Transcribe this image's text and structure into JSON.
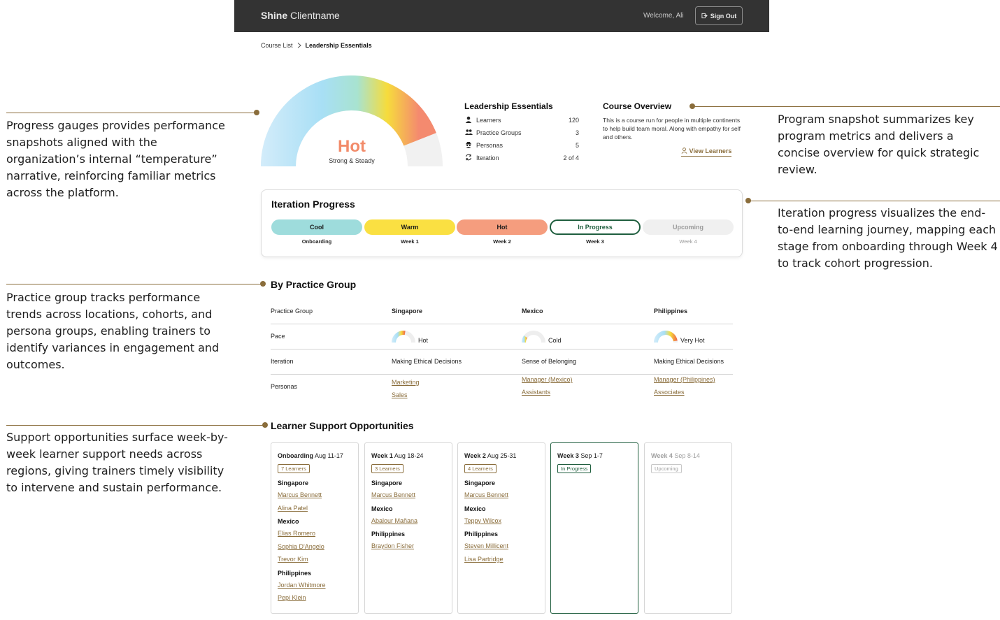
{
  "annotations": {
    "gauges": "Progress gauges provides performance snapshots aligned with the organization’s internal “temperature” narrative, reinforcing familiar metrics across the platform.",
    "snapshot": "Program snapshot summarizes key program metrics and delivers a concise overview for quick strategic review.",
    "iteration": "Iteration progress visualizes the end-to-end learning journey, mapping each stage from onboarding through Week 4 to track cohort progression.",
    "practice": "Practice group tracks performance trends across locations, cohorts, and persona groups, enabling trainers to identify variances in engagement and outcomes.",
    "support": "Support opportunities surface week-by-week learner support needs across regions, giving trainers timely visibility to intervene and sustain performance.",
    "line_color": "#8a6d3b"
  },
  "header": {
    "brand_bold": "Shine",
    "brand_rest": "Clientname",
    "welcome": "Welcome, Ali",
    "signout": "Sign Out"
  },
  "breadcrumb": {
    "parent": "Course List",
    "current": "Leadership Essentials"
  },
  "gauge": {
    "status": "Hot",
    "subtitle": "Strong & Steady",
    "level": 0.88
  },
  "stats": {
    "title": "Leadership Essentials",
    "rows": [
      {
        "icon": "person-icon",
        "label": "Learners",
        "value": "120"
      },
      {
        "icon": "group-icon",
        "label": "Practice Groups",
        "value": "3"
      },
      {
        "icon": "persona-icon",
        "label": "Personas",
        "value": "5"
      },
      {
        "icon": "cycle-icon",
        "label": "Iteration",
        "value": "2 of 4"
      }
    ]
  },
  "overview": {
    "title": "Course Overview",
    "text": "This is a course run for people in multiple continents to help build team moral. Along with empathy for self and others.",
    "link": "View Learners"
  },
  "iteration": {
    "title": "Iteration Progress",
    "stages": [
      {
        "label": "Cool",
        "sub": "Onboarding",
        "bg": "#9edcdc",
        "fg": "#1a1a1a",
        "border": "#9edcdc"
      },
      {
        "label": "Warm",
        "sub": "Week 1",
        "bg": "#fae042",
        "fg": "#1a1a1a",
        "border": "#fae042"
      },
      {
        "label": "Hot",
        "sub": "Week 2",
        "bg": "#f59d7e",
        "fg": "#1a1a1a",
        "border": "#f59d7e"
      },
      {
        "label": "In Progress",
        "sub": "Week 3",
        "bg": "#ffffff",
        "fg": "#1f5e3e",
        "border": "#1f5e3e"
      },
      {
        "label": "Upcoming",
        "sub": "Week 4",
        "bg": "#f0f0f0",
        "fg": "#9a9a9a",
        "border": "#f0f0f0"
      }
    ]
  },
  "practice": {
    "title": "By Practice Group",
    "row_labels": [
      "Practice Group",
      "Pace",
      "Iteration",
      "Personas"
    ],
    "groups": [
      {
        "name": "Singapore",
        "pace": "Hot",
        "pace_level": 0.55,
        "iteration": "Making Ethical Decisions",
        "personas": [
          "Marketing",
          "Sales"
        ]
      },
      {
        "name": "Mexico",
        "pace": "Cold",
        "pace_level": 0.2,
        "iteration": "Sense of Belonging",
        "personas": [
          "Manager (Mexico)",
          "Assistants"
        ]
      },
      {
        "name": "Philippines",
        "pace": "Very Hot",
        "pace_level": 0.95,
        "iteration": "Making Ethical Decisions",
        "personas": [
          "Manager (Philippines)",
          "Associates"
        ]
      }
    ]
  },
  "support": {
    "title": "Learner Support Opportunities",
    "weeks": [
      {
        "name": "Onboarding",
        "dates": "Aug 11-17",
        "badge": "7 Learners",
        "state": "done",
        "regions": [
          {
            "name": "Singapore",
            "people": [
              "Marcus Bennett",
              "Alina Patel"
            ]
          },
          {
            "name": "Mexico",
            "people": [
              "Elias Romero",
              "Sophia D'Angelo",
              "Trevor Kim"
            ]
          },
          {
            "name": "Philippines",
            "people": [
              "Jordan Whitmore",
              "Pepi Klein"
            ]
          }
        ]
      },
      {
        "name": "Week 1",
        "dates": "Aug 18-24",
        "badge": "3 Learners",
        "state": "done",
        "regions": [
          {
            "name": "Singapore",
            "people": [
              "Marcus Bennett"
            ]
          },
          {
            "name": "Mexico",
            "people": [
              "Abalour Mañana"
            ]
          },
          {
            "name": "Philippines",
            "people": [
              "Braydon Fisher"
            ]
          }
        ]
      },
      {
        "name": "Week 2",
        "dates": "Aug 25-31",
        "badge": "4 Learners",
        "state": "done",
        "regions": [
          {
            "name": "Singapore",
            "people": [
              "Marcus Bennett"
            ]
          },
          {
            "name": "Mexico",
            "people": [
              "Teppy Wilcox"
            ]
          },
          {
            "name": "Philippines",
            "people": [
              "Steven Millicent",
              "Lisa Partridge"
            ]
          }
        ]
      },
      {
        "name": "Week 3",
        "dates": "Sep 1-7",
        "badge": "In Progress",
        "state": "active",
        "regions": []
      },
      {
        "name": "Week 4",
        "dates": "Sep 8-14",
        "badge": "Upcoming",
        "state": "upcoming",
        "regions": []
      }
    ]
  }
}
